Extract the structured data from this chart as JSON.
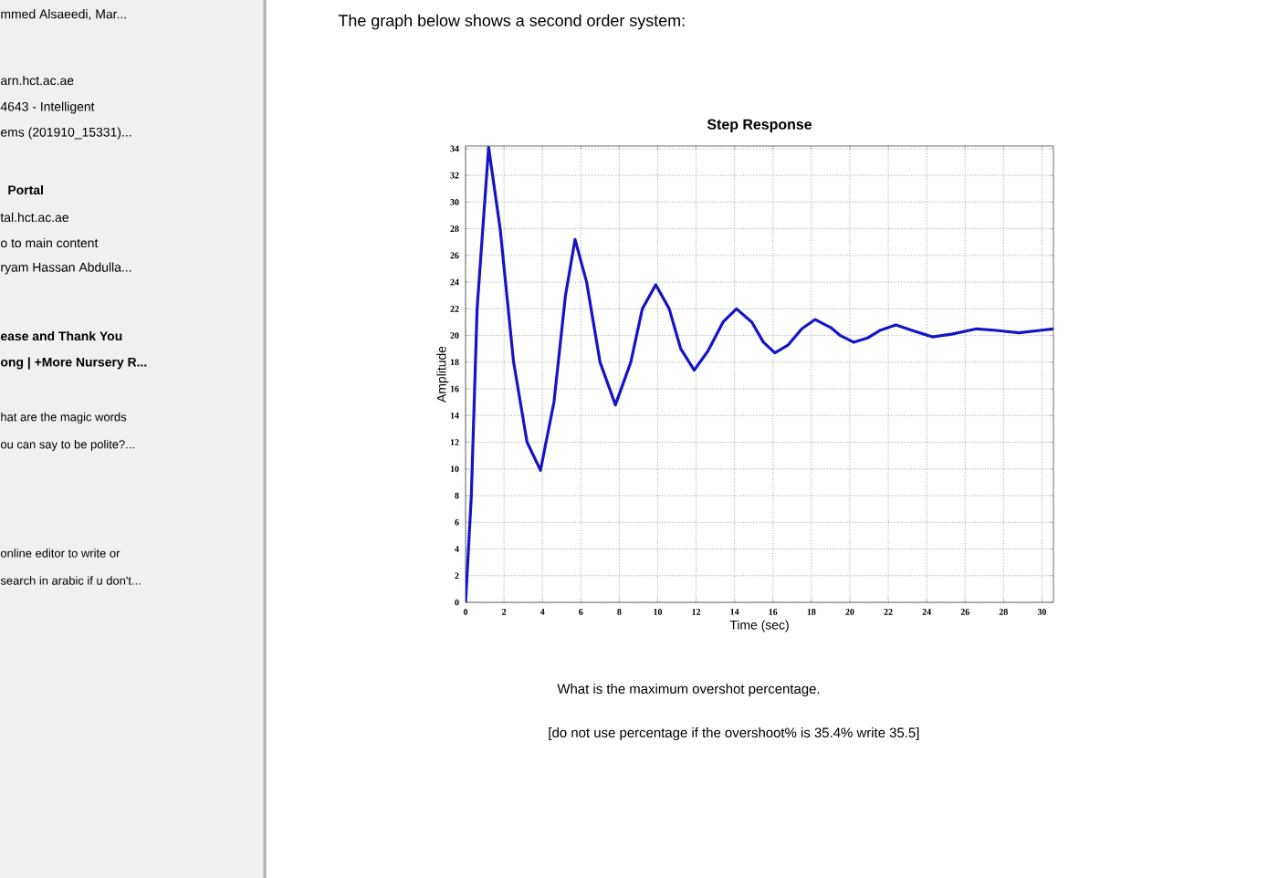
{
  "chart_data": {
    "type": "line",
    "title": "Step Response",
    "xlabel": "Time (sec)",
    "ylabel": "Amplitude",
    "x": [
      0,
      0.3,
      0.6,
      1.2,
      1.8,
      2.5,
      3.2,
      3.9,
      4.6,
      5.2,
      5.7,
      6.3,
      7,
      7.8,
      8.6,
      9.2,
      9.9,
      10.6,
      11.2,
      11.9,
      12.6,
      13.4,
      14.1,
      14.9,
      15.5,
      16.1,
      16.8,
      17.5,
      18.2,
      19,
      19.5,
      20.2,
      20.9,
      21.6,
      22.4,
      23.2,
      24.3,
      25.3,
      26.6,
      27.5,
      28.8,
      30,
      30.6
    ],
    "series": [
      {
        "color": "#1414c8",
        "values": [
          0,
          8,
          22,
          34.1,
          28,
          18,
          12,
          9.9,
          15,
          23,
          27.2,
          24,
          18,
          14.8,
          18,
          22,
          23.8,
          22,
          19,
          17.4,
          18.8,
          21,
          22,
          21,
          19.5,
          18.7,
          19.3,
          20.5,
          21.2,
          20.6,
          20,
          19.5,
          19.8,
          20.4,
          20.8,
          20.4,
          19.9,
          20.1,
          20.5,
          20.4,
          20.2,
          20.4,
          20.5
        ]
      }
    ],
    "xlim": [
      0,
      30.6
    ],
    "ylim": [
      0,
      34.2
    ],
    "xticks": [
      0,
      2,
      4,
      6,
      8,
      10,
      12,
      14,
      16,
      18,
      20,
      22,
      24,
      26,
      28,
      30
    ],
    "yticks": [
      0,
      2,
      4,
      6,
      8,
      10,
      12,
      14,
      16,
      18,
      20,
      22,
      24,
      26,
      28,
      30,
      32,
      34
    ],
    "grid": true,
    "line_style": "solid",
    "marker": "none",
    "annotations": [
      "The graph below shows a second order system:",
      "What is the maximum overshot percentage.",
      "[do not use percentage if the overshoot% is 35.4% write 35.5]",
      "mmed Alsaeedi, Mar...",
      "arn.hct.ac.ae",
      "4643 - Intelligent",
      "ems (201910_15331)...",
      "Portal",
      "tal.hct.ac.ae",
      "o to main content",
      "ryam Hassan Abdulla...",
      "ease and Thank You",
      "ong | +More Nursery R...",
      "hat are the magic words",
      "ou can say to be polite?...",
      "online editor to write or",
      "search in arabic if u don't..."
    ]
  }
}
